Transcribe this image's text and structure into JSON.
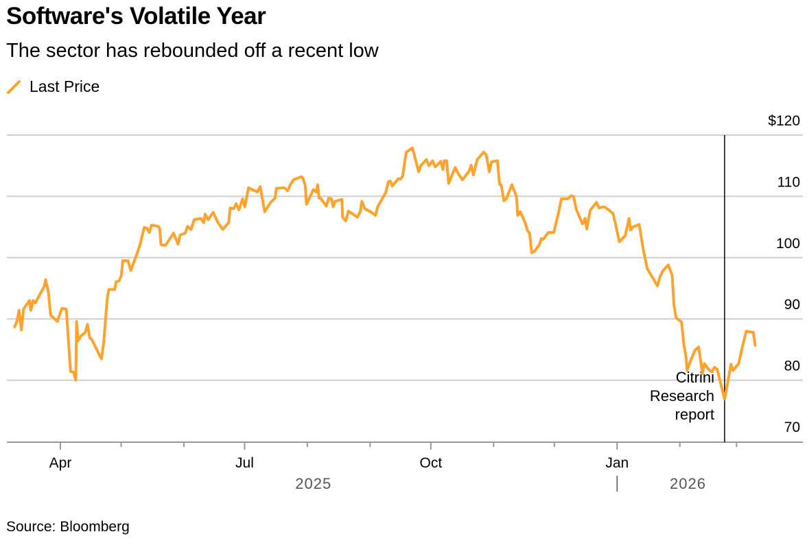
{
  "title": "Software's Volatile Year",
  "subtitle": "The sector has rebounded off a recent low",
  "legend": [
    {
      "label": "Last Price",
      "color": "#FFA22E",
      "icon": "slash-line-icon"
    }
  ],
  "source": "Source: Bloomberg",
  "chart_data": {
    "type": "line",
    "title": "Software's Volatile Year",
    "xlabel": "",
    "ylabel": "",
    "x_unit": "days since 2025-01-01",
    "ylim": [
      70,
      120
    ],
    "y_ticks": [
      {
        "value": 120,
        "label": "$120"
      },
      {
        "value": 110,
        "label": "110"
      },
      {
        "value": 100,
        "label": "100"
      },
      {
        "value": 90,
        "label": "90"
      },
      {
        "value": 80,
        "label": "80"
      },
      {
        "value": 70,
        "label": "70"
      }
    ],
    "x_month_ticks": [
      120,
      151,
      212,
      243,
      304,
      334,
      396,
      424
    ],
    "x_labels": [
      {
        "day": 90,
        "label": "Apr"
      },
      {
        "day": 181,
        "label": "Jul"
      },
      {
        "day": 273,
        "label": "Oct"
      },
      {
        "day": 365,
        "label": "Jan"
      }
    ],
    "year_labels": [
      {
        "day": 215,
        "label": "2025"
      },
      {
        "day": 400,
        "label": "2026"
      }
    ],
    "year_divider_day": 365,
    "grid": true,
    "legend_position": "top-left",
    "annotation": {
      "day": 418.1,
      "lines": [
        "Citrini",
        "Research",
        "report"
      ]
    },
    "series": [
      {
        "name": "Last Price",
        "color": "#FFA22E",
        "points": [
          [
            67.4,
            88.7
          ],
          [
            68.5,
            89.6
          ],
          [
            69.6,
            91.4
          ],
          [
            70.7,
            88.2
          ],
          [
            71.8,
            91.6
          ],
          [
            74.7,
            93.0
          ],
          [
            75.4,
            91.4
          ],
          [
            76.5,
            93.0
          ],
          [
            77.6,
            92.6
          ],
          [
            82.0,
            95.3
          ],
          [
            82.7,
            96.4
          ],
          [
            84.1,
            94.3
          ],
          [
            85.2,
            90.6
          ],
          [
            88.5,
            89.6
          ],
          [
            90.7,
            91.7
          ],
          [
            92.9,
            91.6
          ],
          [
            95.0,
            81.4
          ],
          [
            96.5,
            81.3
          ],
          [
            97.6,
            80.0
          ],
          [
            98.0,
            89.6
          ],
          [
            98.7,
            86.4
          ],
          [
            100.1,
            87.2
          ],
          [
            102.3,
            87.8
          ],
          [
            103.4,
            89.1
          ],
          [
            104.5,
            86.9
          ],
          [
            105.6,
            86.6
          ],
          [
            109.6,
            83.9
          ],
          [
            110.3,
            83.5
          ],
          [
            111.4,
            86.1
          ],
          [
            112.5,
            90.8
          ],
          [
            113.2,
            93.4
          ],
          [
            113.9,
            94.8
          ],
          [
            116.8,
            94.8
          ],
          [
            117.6,
            96.1
          ],
          [
            119.0,
            96.2
          ],
          [
            120.1,
            97.1
          ],
          [
            120.8,
            99.5
          ],
          [
            123.4,
            99.5
          ],
          [
            124.8,
            97.9
          ],
          [
            126.3,
            99.3
          ],
          [
            127.7,
            100.5
          ],
          [
            129.5,
            102.3
          ],
          [
            131.4,
            104.9
          ],
          [
            132.8,
            104.8
          ],
          [
            133.9,
            104.1
          ],
          [
            135.0,
            105.3
          ],
          [
            138.3,
            105.1
          ],
          [
            139.0,
            104.8
          ],
          [
            139.7,
            102.1
          ],
          [
            141.9,
            102.0
          ],
          [
            145.9,
            104.0
          ],
          [
            148.1,
            102.2
          ],
          [
            149.2,
            103.7
          ],
          [
            151.7,
            104.0
          ],
          [
            152.8,
            105.1
          ],
          [
            154.6,
            104.6
          ],
          [
            156.1,
            106.2
          ],
          [
            159.3,
            106.4
          ],
          [
            160.8,
            105.7
          ],
          [
            161.5,
            107.1
          ],
          [
            163.0,
            106.2
          ],
          [
            165.5,
            107.4
          ],
          [
            167.7,
            105.8
          ],
          [
            170.2,
            104.6
          ],
          [
            173.1,
            105.7
          ],
          [
            173.9,
            108.1
          ],
          [
            175.7,
            108.0
          ],
          [
            176.8,
            108.8
          ],
          [
            178.2,
            107.8
          ],
          [
            180.0,
            109.6
          ],
          [
            181.1,
            108.3
          ],
          [
            182.9,
            111.4
          ],
          [
            187.3,
            110.7
          ],
          [
            188.7,
            111.6
          ],
          [
            190.9,
            107.5
          ],
          [
            193.8,
            109.0
          ],
          [
            196.0,
            109.7
          ],
          [
            196.7,
            111.3
          ],
          [
            200.7,
            111.4
          ],
          [
            202.2,
            110.9
          ],
          [
            203.6,
            111.9
          ],
          [
            205.1,
            112.7
          ],
          [
            209.1,
            113.2
          ],
          [
            209.8,
            113.0
          ],
          [
            210.9,
            111.8
          ],
          [
            211.6,
            108.7
          ],
          [
            213.4,
            110.0
          ],
          [
            214.9,
            111.1
          ],
          [
            216.3,
            110.7
          ],
          [
            217.1,
            111.9
          ],
          [
            217.8,
            109.7
          ],
          [
            218.5,
            109.7
          ],
          [
            221.4,
            108.4
          ],
          [
            222.5,
            109.7
          ],
          [
            224.0,
            109.6
          ],
          [
            224.7,
            108.3
          ],
          [
            225.8,
            109.2
          ],
          [
            229.1,
            109.5
          ],
          [
            229.4,
            106.6
          ],
          [
            230.9,
            106.0
          ],
          [
            232.3,
            107.6
          ],
          [
            236.7,
            106.6
          ],
          [
            238.1,
            107.5
          ],
          [
            238.9,
            109.2
          ],
          [
            240.3,
            108.0
          ],
          [
            243.2,
            107.5
          ],
          [
            245.7,
            106.9
          ],
          [
            246.7,
            108.3
          ],
          [
            250.7,
            110.6
          ],
          [
            252.0,
            112.4
          ],
          [
            253.0,
            112.5
          ],
          [
            253.9,
            111.7
          ],
          [
            257.0,
            112.9
          ],
          [
            258.0,
            112.8
          ],
          [
            259.1,
            113.3
          ],
          [
            260.8,
            117.2
          ],
          [
            263.9,
            117.9
          ],
          [
            267.0,
            114.0
          ],
          [
            268.0,
            115.0
          ],
          [
            270.8,
            116.0
          ],
          [
            272.0,
            115.0
          ],
          [
            273.9,
            115.8
          ],
          [
            275.2,
            114.8
          ],
          [
            277.9,
            115.7
          ],
          [
            278.9,
            114.4
          ],
          [
            279.6,
            115.8
          ],
          [
            280.8,
            115.8
          ],
          [
            281.8,
            112.1
          ],
          [
            285.0,
            114.7
          ],
          [
            286.5,
            113.7
          ],
          [
            288.6,
            112.7
          ],
          [
            291.9,
            114.1
          ],
          [
            292.9,
            115.1
          ],
          [
            294.0,
            113.5
          ],
          [
            295.9,
            116.0
          ],
          [
            299.0,
            117.2
          ],
          [
            300.3,
            116.8
          ],
          [
            301.9,
            114.0
          ],
          [
            302.9,
            115.6
          ],
          [
            305.9,
            115.8
          ],
          [
            306.9,
            112.0
          ],
          [
            307.8,
            111.8
          ],
          [
            309.0,
            109.3
          ],
          [
            310.3,
            109.6
          ],
          [
            313.0,
            111.9
          ],
          [
            314.4,
            110.7
          ],
          [
            315.3,
            110.0
          ],
          [
            315.9,
            106.9
          ],
          [
            317.2,
            107.5
          ],
          [
            319.7,
            105.6
          ],
          [
            320.7,
            104.4
          ],
          [
            321.8,
            104.0
          ],
          [
            322.8,
            100.8
          ],
          [
            324.1,
            101.0
          ],
          [
            326.6,
            102.1
          ],
          [
            327.6,
            103.1
          ],
          [
            328.5,
            103.0
          ],
          [
            331.0,
            104.1
          ],
          [
            333.7,
            104.1
          ],
          [
            336.0,
            107.2
          ],
          [
            337.5,
            109.6
          ],
          [
            340.6,
            109.6
          ],
          [
            342.3,
            110.1
          ],
          [
            343.5,
            110.0
          ],
          [
            344.8,
            107.9
          ],
          [
            347.9,
            105.5
          ],
          [
            349.2,
            106.4
          ],
          [
            350.0,
            104.7
          ],
          [
            351.7,
            107.7
          ],
          [
            354.8,
            109.0
          ],
          [
            356.1,
            108.1
          ],
          [
            358.6,
            108.3
          ],
          [
            360.4,
            107.9
          ],
          [
            363.0,
            107.2
          ],
          [
            364.2,
            105.5
          ],
          [
            366.1,
            102.6
          ],
          [
            369.0,
            103.6
          ],
          [
            370.9,
            106.4
          ],
          [
            371.7,
            104.5
          ],
          [
            372.7,
            105.0
          ],
          [
            375.9,
            105.4
          ],
          [
            378.0,
            101.2
          ],
          [
            379.9,
            98.2
          ],
          [
            384.9,
            95.4
          ],
          [
            386.2,
            96.9
          ],
          [
            387.7,
            97.9
          ],
          [
            390.3,
            98.8
          ],
          [
            392.2,
            97.1
          ],
          [
            393.1,
            92.3
          ],
          [
            394.1,
            90.2
          ],
          [
            396.8,
            89.5
          ],
          [
            398.1,
            85.5
          ],
          [
            399.1,
            83.7
          ],
          [
            399.6,
            81.6
          ],
          [
            400.6,
            82.6
          ],
          [
            403.5,
            84.9
          ],
          [
            405.3,
            85.4
          ],
          [
            407.2,
            81.1
          ],
          [
            408.1,
            82.7
          ],
          [
            410.6,
            81.6
          ],
          [
            411.9,
            81.4
          ],
          [
            413.1,
            82.1
          ],
          [
            414.4,
            81.8
          ],
          [
            418.1,
            76.9
          ],
          [
            421.3,
            82.6
          ],
          [
            422.3,
            81.6
          ],
          [
            425.0,
            82.7
          ],
          [
            426.9,
            85.5
          ],
          [
            428.8,
            88.0
          ],
          [
            432.3,
            87.8
          ],
          [
            433.2,
            85.7
          ]
        ]
      }
    ]
  }
}
